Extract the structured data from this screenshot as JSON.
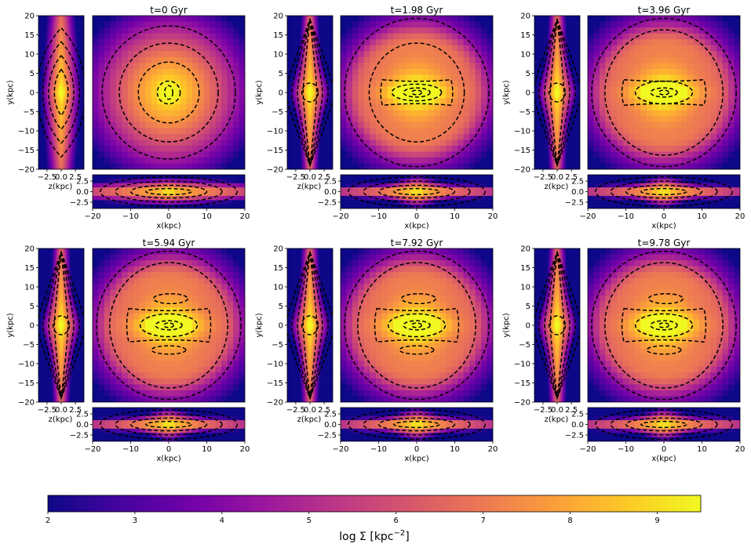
{
  "figure": {
    "colormap": "plasma",
    "colormap_stops": [
      "#0d0887",
      "#46039f",
      "#7201a8",
      "#9c179e",
      "#bd3786",
      "#d8576b",
      "#ed7953",
      "#fb9f3a",
      "#fdca26",
      "#f0f921"
    ],
    "contour_color": "#000000",
    "contour_style": "dashed",
    "colorbar": {
      "label": "log Σ [kpc",
      "label_sup": "−2",
      "label_end": "]",
      "range": [
        2,
        9.5
      ],
      "ticks": [
        "2",
        "3",
        "4",
        "5",
        "6",
        "7",
        "8",
        "9"
      ],
      "orientation": "horizontal",
      "placement": "bottom"
    }
  },
  "chart_data": [
    {
      "type": "heatmap",
      "title": "t=0 Gyr",
      "time_gyr": 0,
      "morphology": "axisymmetric disc, no bar",
      "views": {
        "face_on": {
          "xlabel": "",
          "ylabel": "y(kpc)",
          "xlim": [
            -20,
            20
          ],
          "ylim": [
            -20,
            20
          ]
        },
        "side_on": {
          "xlabel": "z(kpc)",
          "ylabel": "",
          "xlim": [
            -4,
            4
          ],
          "ylim": [
            -20,
            20
          ]
        },
        "edge_on": {
          "xlabel": "x(kpc)",
          "ylabel": "",
          "xlim": [
            -20,
            20
          ],
          "ylim": [
            -4,
            4
          ]
        }
      },
      "x_ticks": [
        "−20",
        "−10",
        "0",
        "10",
        "20"
      ],
      "y_ticks": [
        "20",
        "15",
        "10",
        "5",
        "0",
        "−5",
        "−10",
        "−15",
        "−20"
      ],
      "z_ticks": [
        "−2.5",
        "0.0",
        "2.5"
      ]
    },
    {
      "type": "heatmap",
      "title": "t=1.98 Gyr",
      "time_gyr": 1.98,
      "morphology": "bar forming along x",
      "views": {
        "face_on": {
          "xlabel": "",
          "ylabel": "y(kpc)",
          "xlim": [
            -20,
            20
          ],
          "ylim": [
            -20,
            20
          ]
        },
        "side_on": {
          "xlabel": "z(kpc)",
          "ylabel": "",
          "xlim": [
            -4,
            4
          ],
          "ylim": [
            -20,
            20
          ]
        },
        "edge_on": {
          "xlabel": "x(kpc)",
          "ylabel": "",
          "xlim": [
            -20,
            20
          ],
          "ylim": [
            -4,
            4
          ]
        }
      },
      "x_ticks": [
        "−20",
        "−10",
        "0",
        "10",
        "20"
      ],
      "y_ticks": [
        "20",
        "15",
        "10",
        "5",
        "0",
        "−5",
        "−10",
        "−15",
        "−20"
      ],
      "z_ticks": [
        "−2.5",
        "0.0",
        "2.5"
      ]
    },
    {
      "type": "heatmap",
      "title": "t=3.96 Gyr",
      "time_gyr": 3.96,
      "morphology": "bar with ring",
      "views": {
        "face_on": {
          "xlabel": "",
          "ylabel": "y(kpc)",
          "xlim": [
            -20,
            20
          ],
          "ylim": [
            -20,
            20
          ]
        },
        "side_on": {
          "xlabel": "z(kpc)",
          "ylabel": "",
          "xlim": [
            -4,
            4
          ],
          "ylim": [
            -20,
            20
          ]
        },
        "edge_on": {
          "xlabel": "x(kpc)",
          "ylabel": "",
          "xlim": [
            -20,
            20
          ],
          "ylim": [
            -4,
            4
          ]
        }
      },
      "x_ticks": [
        "−20",
        "−10",
        "0",
        "10",
        "20"
      ],
      "y_ticks": [
        "20",
        "15",
        "10",
        "5",
        "0",
        "−5",
        "−10",
        "−15",
        "−20"
      ],
      "z_ticks": [
        "−2.5",
        "0.0",
        "2.5"
      ]
    },
    {
      "type": "heatmap",
      "title": "t=5.94 Gyr",
      "time_gyr": 5.94,
      "morphology": "strong bar, peanut bulge",
      "views": {
        "face_on": {
          "xlabel": "",
          "ylabel": "y(kpc)",
          "xlim": [
            -20,
            20
          ],
          "ylim": [
            -20,
            20
          ]
        },
        "side_on": {
          "xlabel": "z(kpc)",
          "ylabel": "",
          "xlim": [
            -4,
            4
          ],
          "ylim": [
            -20,
            20
          ]
        },
        "edge_on": {
          "xlabel": "x(kpc)",
          "ylabel": "",
          "xlim": [
            -20,
            20
          ],
          "ylim": [
            -4,
            4
          ]
        }
      },
      "x_ticks": [
        "−20",
        "−10",
        "0",
        "10",
        "20"
      ],
      "y_ticks": [
        "20",
        "15",
        "10",
        "5",
        "0",
        "−5",
        "−10",
        "−15",
        "−20"
      ],
      "z_ticks": [
        "−2.5",
        "0.0",
        "2.5"
      ]
    },
    {
      "type": "heatmap",
      "title": "t=7.92 Gyr",
      "time_gyr": 7.92,
      "morphology": "strong bar, peanut bulge",
      "views": {
        "face_on": {
          "xlabel": "",
          "ylabel": "y(kpc)",
          "xlim": [
            -20,
            20
          ],
          "ylim": [
            -20,
            20
          ]
        },
        "side_on": {
          "xlabel": "z(kpc)",
          "ylabel": "",
          "xlim": [
            -4,
            4
          ],
          "ylim": [
            -20,
            20
          ]
        },
        "edge_on": {
          "xlabel": "x(kpc)",
          "ylabel": "",
          "xlim": [
            -20,
            20
          ],
          "ylim": [
            -4,
            4
          ]
        }
      },
      "x_ticks": [
        "−20",
        "−10",
        "0",
        "10",
        "20"
      ],
      "y_ticks": [
        "20",
        "15",
        "10",
        "5",
        "0",
        "−5",
        "−10",
        "−15",
        "−20"
      ],
      "z_ticks": [
        "−2.5",
        "0.0",
        "2.5"
      ]
    },
    {
      "type": "heatmap",
      "title": "t=9.78 Gyr",
      "time_gyr": 9.78,
      "morphology": "strong bar, peanut bulge",
      "views": {
        "face_on": {
          "xlabel": "",
          "ylabel": "y(kpc)",
          "xlim": [
            -20,
            20
          ],
          "ylim": [
            -20,
            20
          ]
        },
        "side_on": {
          "xlabel": "z(kpc)",
          "ylabel": "",
          "xlim": [
            -4,
            4
          ],
          "ylim": [
            -20,
            20
          ]
        },
        "edge_on": {
          "xlabel": "x(kpc)",
          "ylabel": "",
          "xlim": [
            -20,
            20
          ],
          "ylim": [
            -4,
            4
          ]
        }
      },
      "x_ticks": [
        "−20",
        "−10",
        "0",
        "10",
        "20"
      ],
      "y_ticks": [
        "20",
        "15",
        "10",
        "5",
        "0",
        "−5",
        "−10",
        "−15",
        "−20"
      ],
      "z_ticks": [
        "−2.5",
        "0.0",
        "2.5"
      ]
    }
  ]
}
